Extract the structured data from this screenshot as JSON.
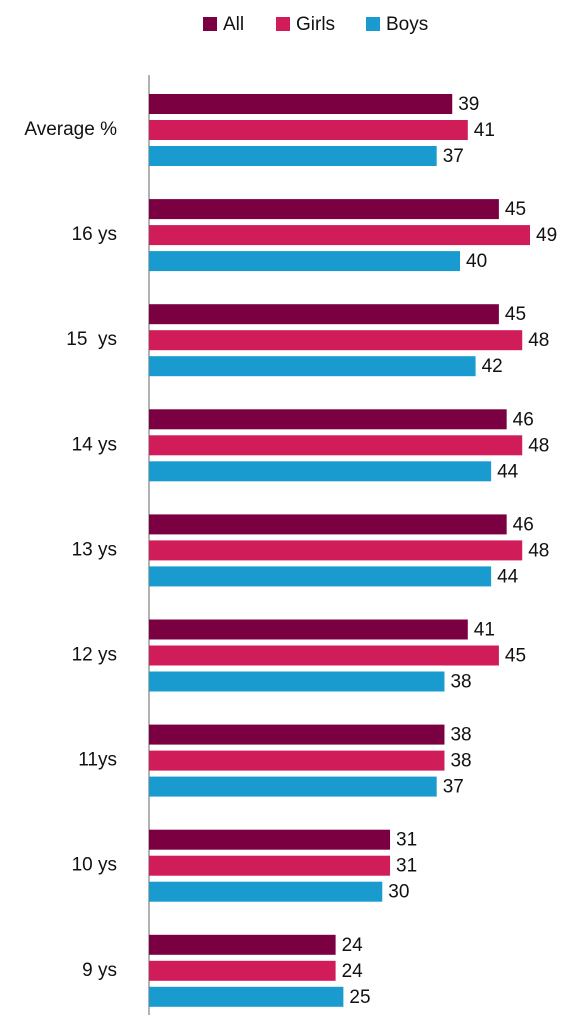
{
  "chart_data": {
    "type": "bar",
    "orientation": "horizontal",
    "categories": [
      "Average %",
      "16 ys",
      "15  ys",
      "14 ys",
      "13 ys",
      "12 ys",
      "11ys",
      "10 ys",
      "9 ys"
    ],
    "series": [
      {
        "name": "All",
        "color": "#7b0041",
        "values": [
          39,
          45,
          45,
          46,
          46,
          41,
          38,
          31,
          24
        ]
      },
      {
        "name": "Girls",
        "color": "#d01c58",
        "values": [
          41,
          49,
          48,
          48,
          48,
          45,
          38,
          31,
          24
        ]
      },
      {
        "name": "Boys",
        "color": "#1a9bd0",
        "values": [
          37,
          40,
          42,
          44,
          44,
          38,
          37,
          30,
          25
        ]
      }
    ],
    "legend": "top"
  }
}
